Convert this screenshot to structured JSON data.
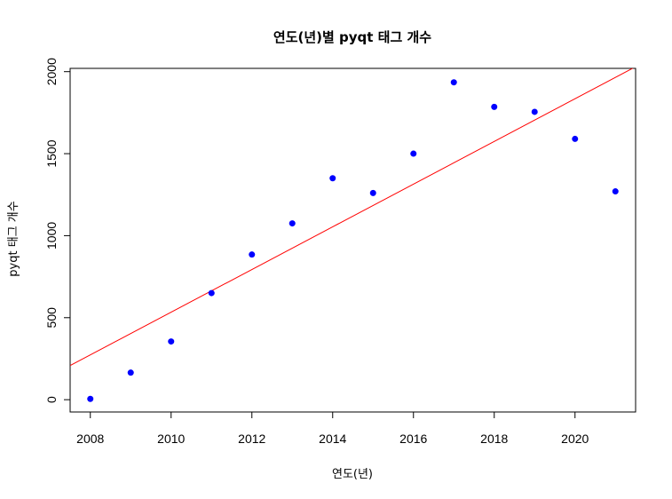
{
  "chart_data": {
    "type": "scatter",
    "title": "연도(년)별 pyqt 태그 개수",
    "xlabel": "연도(년)",
    "ylabel": "pyqt 태그 개수",
    "xlim": [
      2007.5,
      2021.5
    ],
    "ylim": [
      -75,
      2020
    ],
    "x_ticks": [
      2008,
      2010,
      2012,
      2014,
      2016,
      2018,
      2020
    ],
    "y_ticks": [
      0,
      500,
      1000,
      1500,
      2000
    ],
    "grid": false,
    "points": [
      {
        "x": 2008,
        "y": 5
      },
      {
        "x": 2009,
        "y": 165
      },
      {
        "x": 2010,
        "y": 355
      },
      {
        "x": 2011,
        "y": 650
      },
      {
        "x": 2012,
        "y": 885
      },
      {
        "x": 2013,
        "y": 1075
      },
      {
        "x": 2014,
        "y": 1350
      },
      {
        "x": 2015,
        "y": 1260
      },
      {
        "x": 2016,
        "y": 1500
      },
      {
        "x": 2017,
        "y": 1935
      },
      {
        "x": 2018,
        "y": 1785
      },
      {
        "x": 2019,
        "y": 1755
      },
      {
        "x": 2020,
        "y": 1590
      },
      {
        "x": 2021,
        "y": 1270
      }
    ],
    "regression_line": {
      "x": [
        2007.5,
        2021.5
      ],
      "y": [
        208,
        2030
      ]
    },
    "colors": {
      "points": "#0000ff",
      "regression_line": "#ff0000",
      "axes": "#000000"
    }
  }
}
